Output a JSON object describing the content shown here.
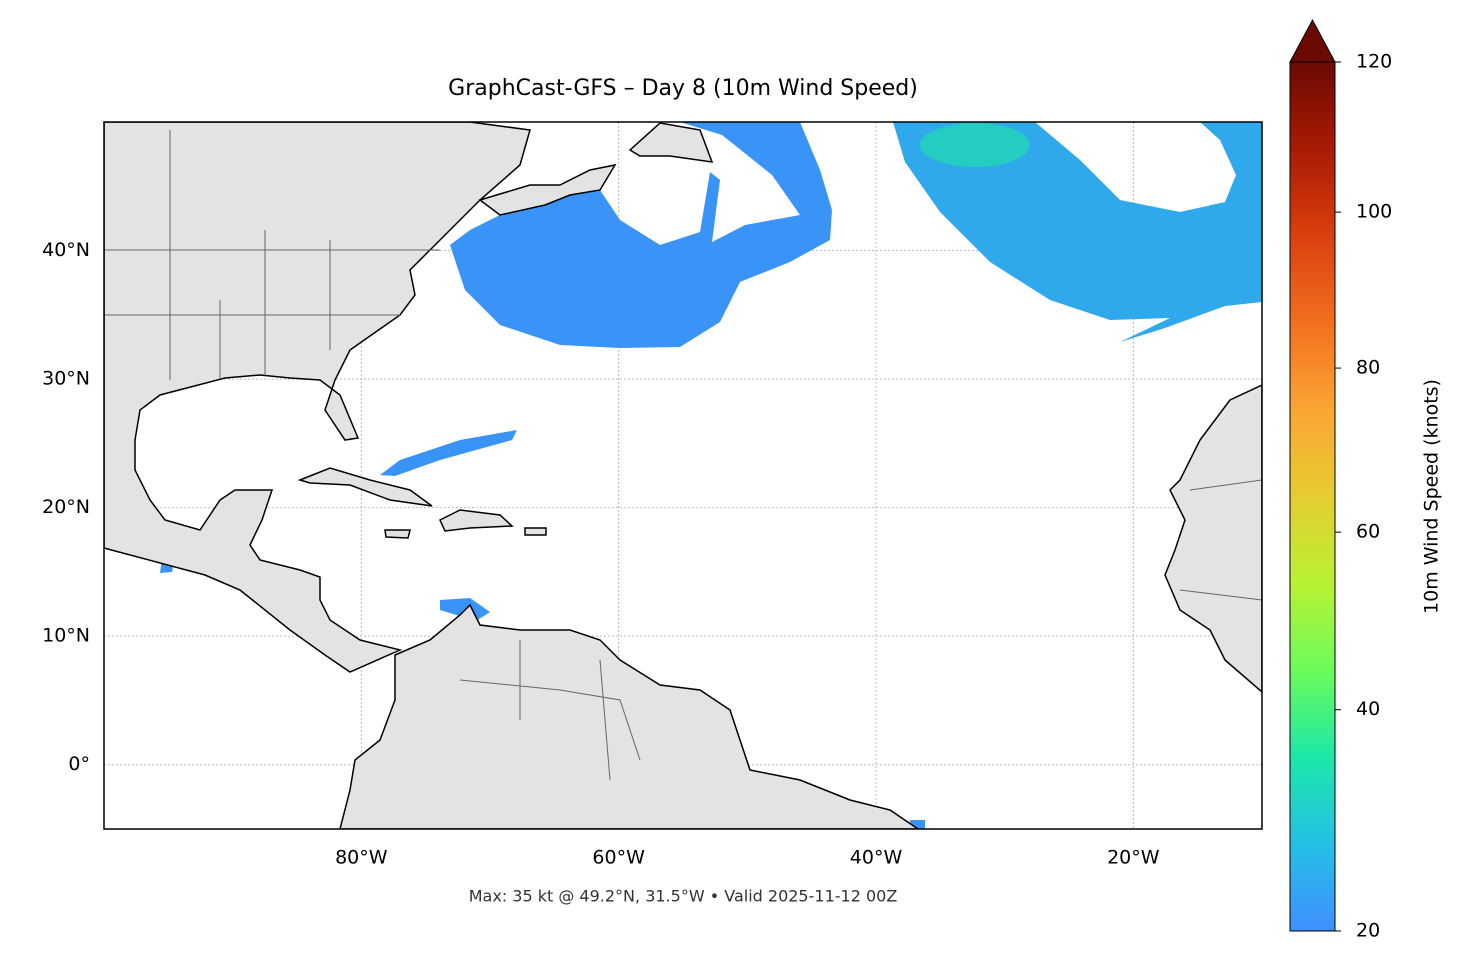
{
  "chart_data": {
    "type": "map",
    "title": "GraphCast-GFS – Day 8 (10m Wind Speed)",
    "footnote": "Max: 35 kt @ 49.2°N, 31.5°W • Valid 2025-11-12 00Z",
    "xlim": [
      -100,
      -10
    ],
    "ylim": [
      -5,
      50
    ],
    "xticks": [
      {
        "value": -80,
        "label": "80°W"
      },
      {
        "value": -60,
        "label": "60°W"
      },
      {
        "value": -40,
        "label": "40°W"
      },
      {
        "value": -20,
        "label": "20°W"
      }
    ],
    "yticks": [
      {
        "value": 0,
        "label": "0°"
      },
      {
        "value": 10,
        "label": "10°N"
      },
      {
        "value": 20,
        "label": "20°N"
      },
      {
        "value": 30,
        "label": "30°N"
      },
      {
        "value": 40,
        "label": "40°N"
      }
    ],
    "grid": true,
    "colorbar": {
      "label": "10m Wind Speed (knots)",
      "lim": [
        20,
        120
      ],
      "ticks": [
        20,
        40,
        60,
        80,
        100,
        120
      ],
      "gamma": 0.85,
      "extend": "max",
      "colors": [
        "#3f8ffe",
        "#25c0e6",
        "#1be8a8",
        "#6cfb5a",
        "#b8f233",
        "#e6cc32",
        "#fba533",
        "#f26f1f",
        "#d9400e",
        "#a91a04",
        "#6b0a02"
      ]
    }
  }
}
